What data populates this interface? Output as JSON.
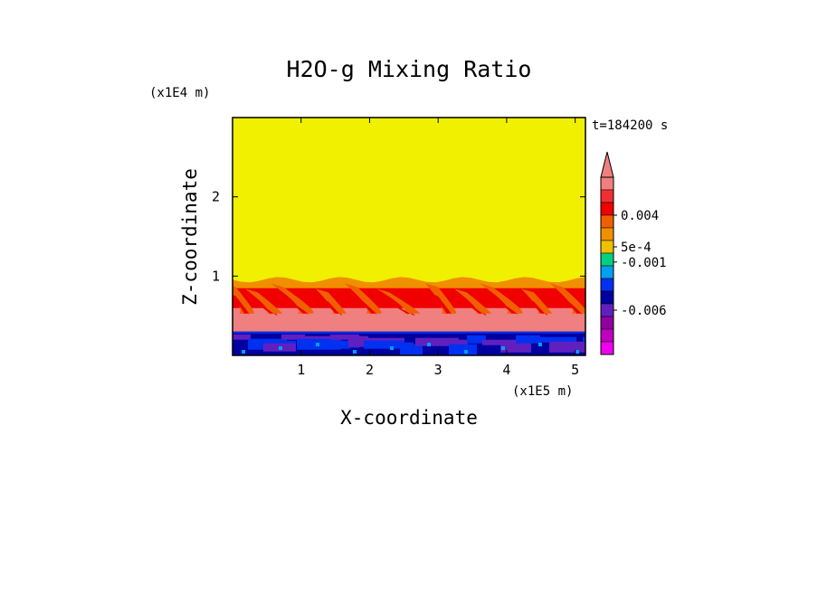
{
  "chart_data": {
    "type": "heatmap",
    "title": "H2O-g Mixing Ratio",
    "time_label": "t=184200 s",
    "xlabel": "X-coordinate",
    "ylabel": "Z-coordinate",
    "x_unit": "(x1E5 m)",
    "y_unit": "(x1E4 m)",
    "xlim": [
      0,
      5.15
    ],
    "ylim": [
      0,
      3.0
    ],
    "x_ticks": [
      {
        "value": 1,
        "label": "1"
      },
      {
        "value": 2,
        "label": "2"
      },
      {
        "value": 3,
        "label": "3"
      },
      {
        "value": 4,
        "label": "4"
      },
      {
        "value": 5,
        "label": "5"
      }
    ],
    "y_ticks": [
      {
        "value": 1,
        "label": "1"
      },
      {
        "value": 2,
        "label": "2"
      }
    ],
    "colorbar": {
      "colors_top_to_bottom": [
        "#f07f7f",
        "#f03030",
        "#f00000",
        "#f06000",
        "#f09000",
        "#f0c000",
        "#00d080",
        "#00a0f0",
        "#0030f0",
        "#0000a0",
        "#6020c0",
        "#9000a0",
        "#c000c0",
        "#f000f0"
      ],
      "labels": [
        {
          "text": "0.004",
          "level": 3
        },
        {
          "text": "5e-4",
          "level": 5.5
        },
        {
          "text": "-0.001",
          "level": 6.7
        },
        {
          "text": "-0.006",
          "level": 10.5
        }
      ]
    },
    "regions": [
      {
        "name": "upper-dry-layer",
        "z_range": [
          1.0,
          3.0
        ],
        "color": "#f0f000"
      },
      {
        "name": "convective-plumes",
        "z_range": [
          0.3,
          1.0
        ],
        "colors": [
          "#f09000",
          "#f06000",
          "#f00000",
          "#f07f7f"
        ]
      },
      {
        "name": "surface-layer",
        "z_range": [
          0.0,
          0.3
        ],
        "colors": [
          "#0000a0",
          "#0030f0",
          "#6020c0",
          "#00a0f0"
        ]
      }
    ],
    "plume_x": [
      0.1,
      0.5,
      0.95,
      1.45,
      1.95,
      2.5,
      3.05,
      3.55,
      4.0,
      4.45,
      4.95
    ]
  }
}
